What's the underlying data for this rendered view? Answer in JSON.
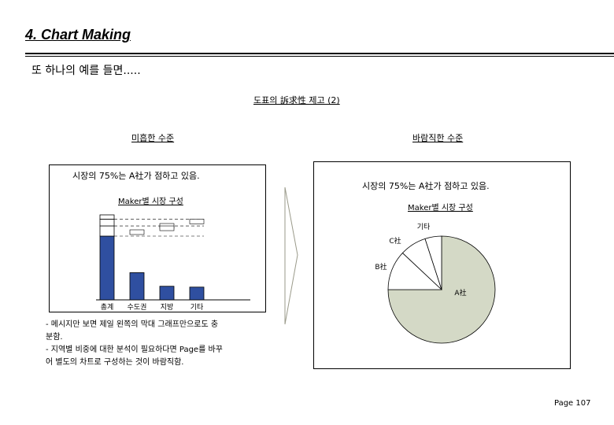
{
  "page": {
    "title": "4. Chart Making",
    "subtitle": "또 하나의 예를 들면.....",
    "section_heading": "도표의 訴求性 제고 (2)",
    "page_number": "Page 107"
  },
  "left_panel": {
    "label": "미흡한 수준",
    "message": "시장의 75%는 A社가 점하고 있음.",
    "chart_title": "Maker별 시장 구성"
  },
  "right_panel": {
    "label": "바람직한 수준",
    "message": "시장의 75%는 A社가 점하고 있음.",
    "chart_title": "Maker별 시장 구성"
  },
  "notes": [
    "- 메시지만 보면 제일 왼쪽의 막대 그래프만으로도 충",
    "  분함.",
    "- 지역별 비중에 대한 분석이 필요하다면 Page를 바꾸",
    "  어 별도의 차트로 구성하는 것이 바람직함."
  ],
  "chart_data": [
    {
      "type": "bar",
      "categories": [
        "총계",
        "수도권",
        "지방",
        "기타"
      ],
      "segments_order": [
        "A社",
        "B社",
        "C社",
        "기타"
      ],
      "stacks": [
        [
          75,
          12,
          8,
          5
        ],
        [
          32,
          0,
          0,
          0
        ],
        [
          16,
          0,
          0,
          0
        ],
        [
          15,
          0,
          0,
          0
        ]
      ],
      "colors": {
        "A社": "#2f4fa0",
        "others": "#ffffff"
      }
    },
    {
      "type": "pie",
      "labels": [
        "A社",
        "B社",
        "C社",
        "기타"
      ],
      "values": [
        75,
        12,
        8,
        5
      ],
      "colors": [
        "#d4d9c6",
        "#ffffff",
        "#ffffff",
        "#ffffff"
      ]
    }
  ]
}
